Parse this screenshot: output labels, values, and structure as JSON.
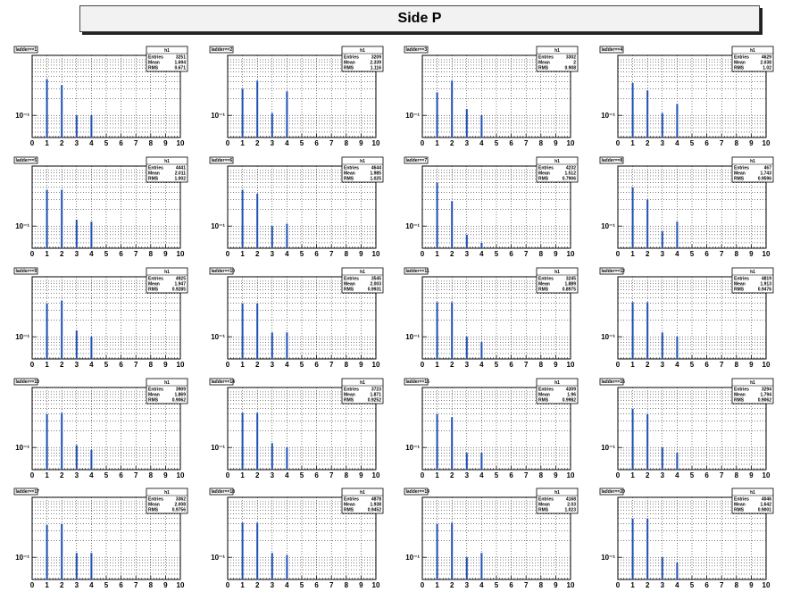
{
  "title": "Side P",
  "chart_data": {
    "type": "bar",
    "x_ticks": [
      "0",
      "1",
      "2",
      "3",
      "4",
      "5",
      "6",
      "7",
      "8",
      "9",
      "10"
    ],
    "xlim": [
      0,
      10
    ],
    "ylim_log": [
      0.04,
      1.2
    ],
    "y_tick_label": "10⁻¹",
    "y_scale": "log",
    "grid": true,
    "bar_color": "#1f4fb4",
    "panels": [
      {
        "name": "ladder==1",
        "stats_title": "h1",
        "entries": "3251",
        "mean": "1.694",
        "rms": "0.671",
        "x": [
          1,
          2,
          3,
          4
        ],
        "values": [
          0.45,
          0.35,
          0.1,
          0.1
        ]
      },
      {
        "name": "ladder==2",
        "stats_title": "h1",
        "entries": "3209",
        "mean": "2.339",
        "rms": "1.116",
        "x": [
          1,
          2,
          3,
          4
        ],
        "values": [
          0.3,
          0.42,
          0.11,
          0.27
        ]
      },
      {
        "name": "ladder==3",
        "stats_title": "h1",
        "entries": "3302",
        "mean": "2",
        "rms": "0.908",
        "x": [
          1,
          2,
          3,
          4
        ],
        "values": [
          0.26,
          0.42,
          0.13,
          0.1
        ]
      },
      {
        "name": "ladder==4",
        "stats_title": "h1",
        "entries": "4629",
        "mean": "2.038",
        "rms": "1.02",
        "x": [
          1,
          2,
          3,
          4
        ],
        "values": [
          0.38,
          0.28,
          0.11,
          0.16
        ]
      },
      {
        "name": "ladder==5",
        "stats_title": "h1",
        "entries": "4441",
        "mean": "2.011",
        "rms": "1.002",
        "x": [
          1,
          2,
          3,
          4
        ],
        "values": [
          0.45,
          0.45,
          0.13,
          0.12
        ]
      },
      {
        "name": "ladder==6",
        "stats_title": "h1",
        "entries": "4644",
        "mean": "1.985",
        "rms": "1.025",
        "x": [
          1,
          2,
          3,
          4
        ],
        "values": [
          0.45,
          0.38,
          0.1,
          0.11
        ]
      },
      {
        "name": "ladder==7",
        "stats_title": "h1",
        "entries": "4232",
        "mean": "1.512",
        "rms": "0.7906",
        "x": [
          1,
          2,
          3,
          4
        ],
        "values": [
          0.6,
          0.28,
          0.07,
          0.05
        ]
      },
      {
        "name": "ladder==8",
        "stats_title": "h1",
        "entries": "467",
        "mean": "1.743",
        "rms": "0.9596",
        "x": [
          1,
          2,
          3,
          4
        ],
        "values": [
          0.5,
          0.3,
          0.08,
          0.12
        ]
      },
      {
        "name": "ladder==9",
        "stats_title": "h1",
        "entries": "4925",
        "mean": "1.947",
        "rms": "0.9285",
        "x": [
          1,
          2,
          3,
          4
        ],
        "values": [
          0.4,
          0.45,
          0.13,
          0.1
        ]
      },
      {
        "name": "ladder==10",
        "stats_title": "h1",
        "entries": "3545",
        "mean": "2.003",
        "rms": "0.9931",
        "x": [
          1,
          2,
          3,
          4
        ],
        "values": [
          0.4,
          0.4,
          0.12,
          0.12
        ]
      },
      {
        "name": "ladder==11",
        "stats_title": "h1",
        "entries": "3245",
        "mean": "1.889",
        "rms": "0.8975",
        "x": [
          1,
          2,
          3,
          4
        ],
        "values": [
          0.42,
          0.42,
          0.1,
          0.08
        ]
      },
      {
        "name": "ladder==12",
        "stats_title": "h1",
        "entries": "4819",
        "mean": "1.913",
        "rms": "0.9476",
        "x": [
          1,
          2,
          3,
          4
        ],
        "values": [
          0.42,
          0.42,
          0.12,
          0.1
        ]
      },
      {
        "name": "ladder==13",
        "stats_title": "h1",
        "entries": "3909",
        "mean": "1.869",
        "rms": "0.9062",
        "x": [
          1,
          2,
          3,
          4
        ],
        "values": [
          0.4,
          0.42,
          0.11,
          0.09
        ]
      },
      {
        "name": "ladder==14",
        "stats_title": "h1",
        "entries": "3723",
        "mean": "1.871",
        "rms": "0.9252",
        "x": [
          1,
          2,
          3,
          4
        ],
        "values": [
          0.42,
          0.42,
          0.12,
          0.1
        ]
      },
      {
        "name": "ladder==15",
        "stats_title": "h1",
        "entries": "4309",
        "mean": "1.96",
        "rms": "0.9982",
        "x": [
          1,
          2,
          3,
          4
        ],
        "values": [
          0.4,
          0.35,
          0.08,
          0.08
        ]
      },
      {
        "name": "ladder==16",
        "stats_title": "h1",
        "entries": "3294",
        "mean": "1.794",
        "rms": "0.9062",
        "x": [
          1,
          2,
          3,
          4
        ],
        "values": [
          0.5,
          0.4,
          0.1,
          0.08
        ]
      },
      {
        "name": "ladder==17",
        "stats_title": "h1",
        "entries": "3362",
        "mean": "2.008",
        "rms": "0.9756",
        "x": [
          1,
          2,
          3,
          4
        ],
        "values": [
          0.38,
          0.4,
          0.12,
          0.12
        ]
      },
      {
        "name": "ladder==18",
        "stats_title": "h1",
        "entries": "4878",
        "mean": "1.938",
        "rms": "0.9452",
        "x": [
          1,
          2,
          3,
          4
        ],
        "values": [
          0.42,
          0.42,
          0.12,
          0.11
        ]
      },
      {
        "name": "ladder==19",
        "stats_title": "h1",
        "entries": "4168",
        "mean": "2.03",
        "rms": "1.023",
        "x": [
          1,
          2,
          3,
          4
        ],
        "values": [
          0.4,
          0.42,
          0.1,
          0.12
        ]
      },
      {
        "name": "ladder==20",
        "stats_title": "h1",
        "entries": "4046",
        "mean": "1.642",
        "rms": "0.9001",
        "x": [
          1,
          2,
          3,
          4
        ],
        "values": [
          0.5,
          0.5,
          0.1,
          0.08
        ]
      }
    ]
  }
}
